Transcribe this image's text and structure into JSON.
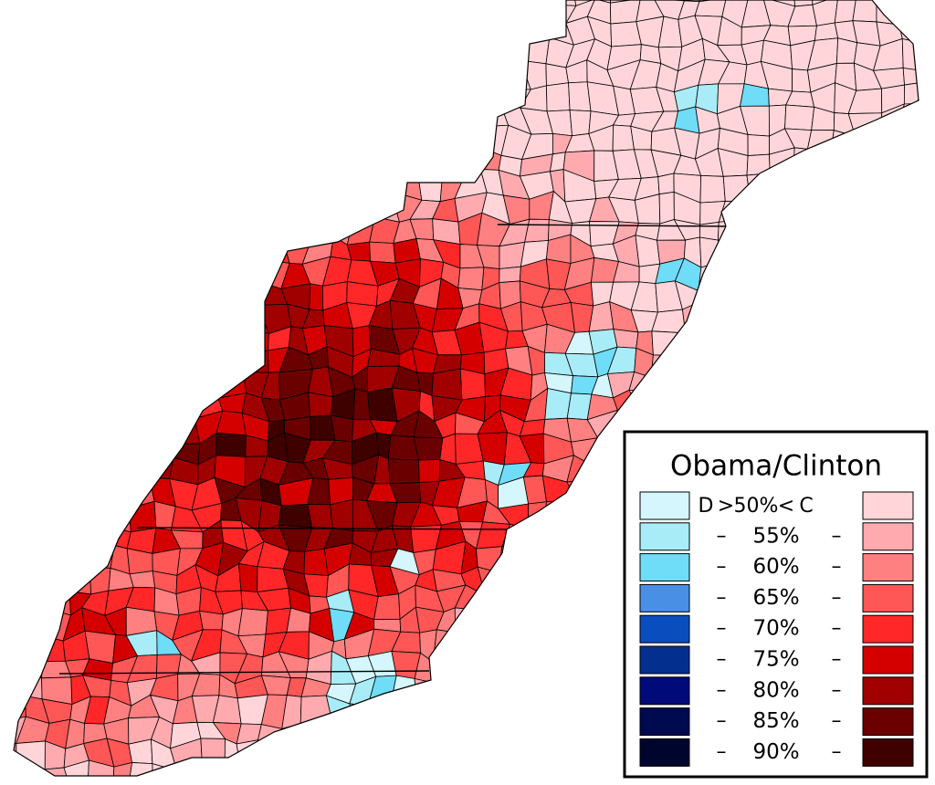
{
  "legend": {
    "title": "Obama/Clinton",
    "header": {
      "left": "D",
      "sign_left": ">",
      "label": "50%",
      "sign_right": "<",
      "right": "C"
    },
    "rows": [
      {
        "dash_left": "–",
        "label": "55%",
        "dash_right": "–"
      },
      {
        "dash_left": "–",
        "label": "60%",
        "dash_right": "–"
      },
      {
        "dash_left": "–",
        "label": "65%",
        "dash_right": "–"
      },
      {
        "dash_left": "–",
        "label": "70%",
        "dash_right": "–"
      },
      {
        "dash_left": "–",
        "label": "75%",
        "dash_right": "–"
      },
      {
        "dash_left": "–",
        "label": "80%",
        "dash_right": "–"
      },
      {
        "dash_left": "–",
        "label": "85%",
        "dash_right": "–"
      },
      {
        "dash_left": "–",
        "label": "90%",
        "dash_right": "–"
      }
    ],
    "left_colors": [
      "#d4f6fc",
      "#a8ecf8",
      "#6fdcf8",
      "#4a8fe6",
      "#0a4dbf",
      "#03308f",
      "#000a78",
      "#000a50",
      "#00052e"
    ],
    "right_colors": [
      "#ffd5d9",
      "#ffaaaf",
      "#ff8080",
      "#ff5656",
      "#ff2727",
      "#d40000",
      "#a00000",
      "#6b0000",
      "#3f0000"
    ]
  }
}
